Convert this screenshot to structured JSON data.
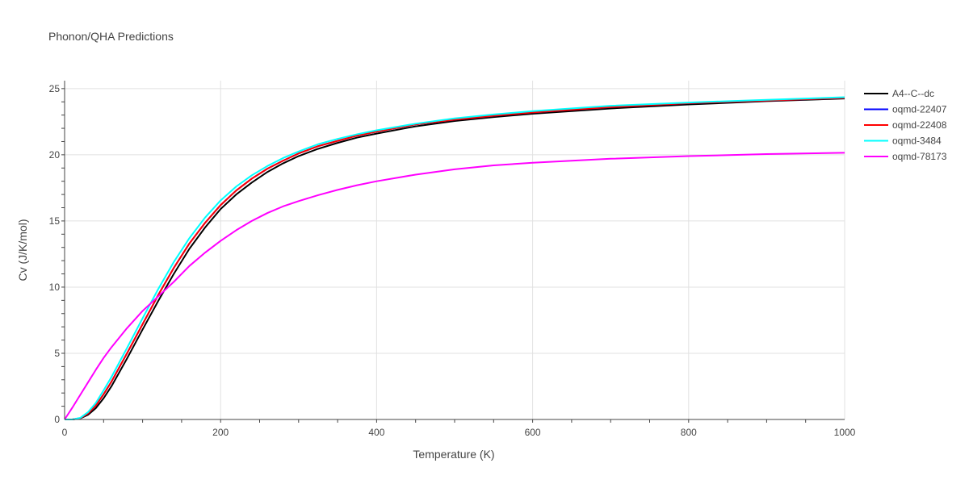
{
  "chart_data": {
    "type": "line",
    "title": "Phonon/QHA Predictions",
    "xlabel": "Temperature (K)",
    "ylabel": "Cv (J/K/mol)",
    "xlim": [
      0,
      1000
    ],
    "ylim": [
      0,
      25.6
    ],
    "xticks": [
      0,
      200,
      400,
      600,
      800,
      1000
    ],
    "yticks": [
      0,
      5,
      10,
      15,
      20,
      25
    ],
    "grid": true,
    "legend_position": "top-right",
    "series": [
      {
        "name": "A4--C--dc",
        "color": "#000000",
        "x": [
          0,
          10,
          20,
          30,
          40,
          50,
          60,
          80,
          100,
          120,
          140,
          160,
          180,
          200,
          220,
          240,
          260,
          280,
          300,
          325,
          350,
          375,
          400,
          450,
          500,
          550,
          600,
          700,
          800,
          900,
          1000
        ],
        "y": [
          0,
          0,
          0.08,
          0.35,
          0.85,
          1.6,
          2.5,
          4.6,
          6.8,
          8.95,
          11.0,
          12.9,
          14.5,
          15.9,
          17.0,
          17.9,
          18.7,
          19.35,
          19.9,
          20.45,
          20.9,
          21.3,
          21.6,
          22.15,
          22.55,
          22.85,
          23.1,
          23.5,
          23.8,
          24.05,
          24.25
        ]
      },
      {
        "name": "oqmd-22407",
        "color": "#0000ff",
        "x": [
          0,
          10,
          20,
          30,
          40,
          50,
          60,
          80,
          100,
          120,
          140,
          160,
          180,
          200,
          220,
          240,
          260,
          280,
          300,
          325,
          350,
          375,
          400,
          450,
          500,
          550,
          600,
          700,
          800,
          900,
          1000
        ],
        "y": [
          0,
          0,
          0.1,
          0.45,
          1.05,
          1.9,
          2.85,
          5.0,
          7.2,
          9.4,
          11.45,
          13.3,
          14.85,
          16.2,
          17.3,
          18.2,
          18.95,
          19.55,
          20.1,
          20.65,
          21.05,
          21.45,
          21.75,
          22.3,
          22.65,
          22.95,
          23.2,
          23.6,
          23.9,
          24.1,
          24.3
        ]
      },
      {
        "name": "oqmd-22408",
        "color": "#ff0000",
        "x": [
          0,
          10,
          20,
          30,
          40,
          50,
          60,
          80,
          100,
          120,
          140,
          160,
          180,
          200,
          220,
          240,
          260,
          280,
          300,
          325,
          350,
          375,
          400,
          450,
          500,
          550,
          600,
          700,
          800,
          900,
          1000
        ],
        "y": [
          0,
          0,
          0.1,
          0.45,
          1.05,
          1.9,
          2.85,
          5.0,
          7.2,
          9.4,
          11.45,
          13.3,
          14.85,
          16.2,
          17.3,
          18.2,
          18.95,
          19.55,
          20.1,
          20.65,
          21.05,
          21.45,
          21.75,
          22.3,
          22.65,
          22.95,
          23.2,
          23.6,
          23.9,
          24.1,
          24.3
        ]
      },
      {
        "name": "oqmd-3484",
        "color": "#00ffff",
        "x": [
          0,
          10,
          20,
          30,
          40,
          50,
          60,
          80,
          100,
          120,
          140,
          160,
          180,
          200,
          220,
          240,
          260,
          280,
          300,
          325,
          350,
          375,
          400,
          450,
          500,
          550,
          600,
          700,
          800,
          900,
          1000
        ],
        "y": [
          0,
          0,
          0.12,
          0.55,
          1.25,
          2.2,
          3.2,
          5.4,
          7.65,
          9.85,
          11.9,
          13.7,
          15.25,
          16.55,
          17.6,
          18.45,
          19.15,
          19.75,
          20.25,
          20.8,
          21.2,
          21.55,
          21.85,
          22.35,
          22.75,
          23.05,
          23.3,
          23.7,
          23.95,
          24.15,
          24.35
        ]
      },
      {
        "name": "oqmd-78173",
        "color": "#ff00ff",
        "x": [
          0,
          10,
          20,
          30,
          40,
          50,
          60,
          80,
          100,
          120,
          140,
          160,
          180,
          200,
          220,
          240,
          260,
          280,
          300,
          325,
          350,
          375,
          400,
          450,
          500,
          550,
          600,
          700,
          800,
          900,
          1000
        ],
        "y": [
          0,
          0.9,
          1.85,
          2.8,
          3.75,
          4.65,
          5.45,
          6.9,
          8.2,
          9.3,
          10.4,
          11.6,
          12.6,
          13.5,
          14.3,
          15.0,
          15.6,
          16.1,
          16.5,
          16.95,
          17.35,
          17.7,
          18.0,
          18.5,
          18.9,
          19.2,
          19.4,
          19.7,
          19.9,
          20.05,
          20.15
        ]
      }
    ]
  }
}
